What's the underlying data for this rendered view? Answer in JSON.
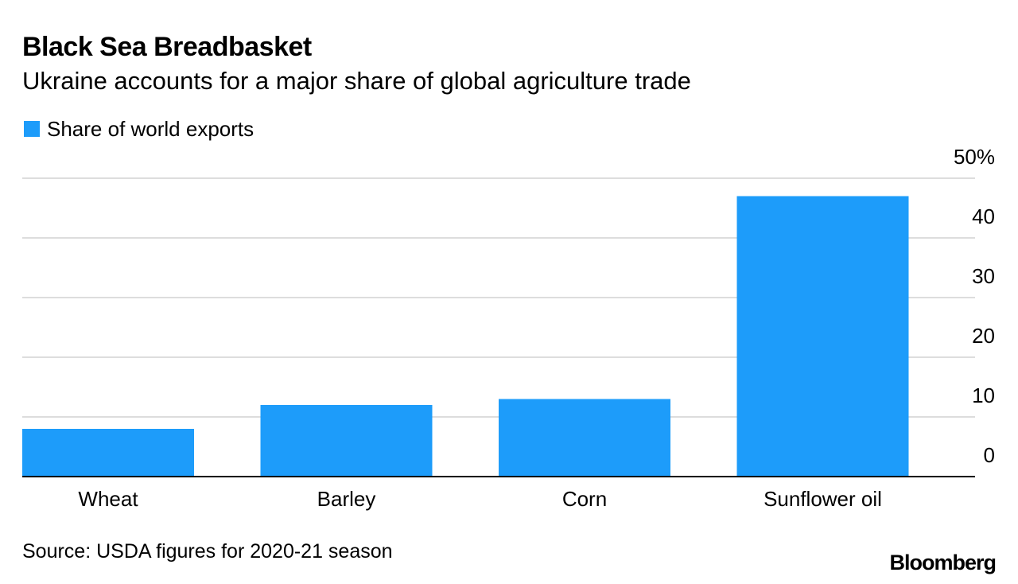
{
  "header": {
    "title": "Black Sea Breadbasket",
    "subtitle": "Ukraine accounts for a major share of global agriculture trade"
  },
  "legend": {
    "label": "Share of world exports",
    "color": "#1d9cfa"
  },
  "footer": {
    "source": "Source: USDA figures for 2020-21 season",
    "brand": "Bloomberg"
  },
  "chart_data": {
    "type": "bar",
    "title": "Black Sea Breadbasket",
    "subtitle": "Ukraine accounts for a major share of global agriculture trade",
    "categories": [
      "Wheat",
      "Barley",
      "Corn",
      "Sunflower oil"
    ],
    "series": [
      {
        "name": "Share of world exports",
        "values": [
          8,
          12,
          13,
          47
        ],
        "color": "#1d9cfa"
      }
    ],
    "xlabel": "",
    "ylabel": "",
    "ylim": [
      0,
      50
    ],
    "yticks": [
      0,
      10,
      20,
      30,
      40,
      50
    ],
    "ytick_labels": [
      "0",
      "10",
      "20",
      "30",
      "40",
      "50%"
    ],
    "y_axis_side": "right",
    "grid": true,
    "legend_position": "top-left",
    "gridline_color": "#dddddd",
    "baseline_color": "#000000"
  }
}
